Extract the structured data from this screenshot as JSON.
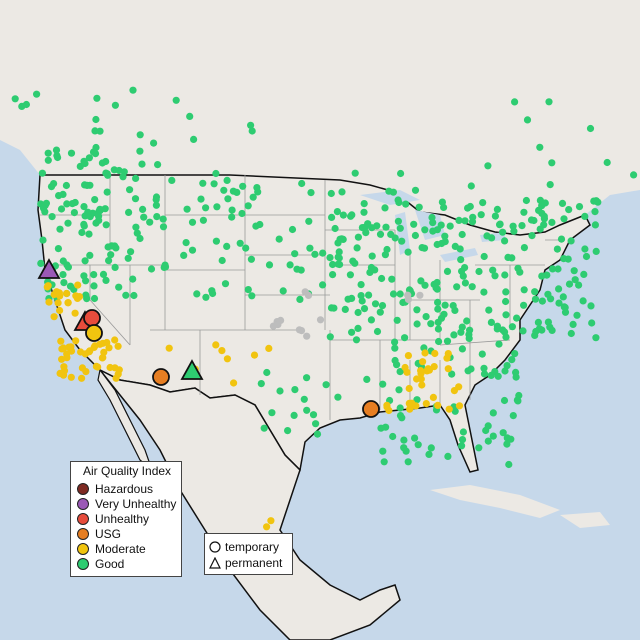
{
  "legend": {
    "title": "Air Quality Index",
    "categories": [
      {
        "label": "Hazardous",
        "color": "#7e2a22"
      },
      {
        "label": "Very Unhealthy",
        "color": "#9b59b6"
      },
      {
        "label": "Unhealthy",
        "color": "#e74c3c"
      },
      {
        "label": "USG",
        "color": "#e67e22"
      },
      {
        "label": "Moderate",
        "color": "#f1c40f"
      },
      {
        "label": "Good",
        "color": "#2ecc71"
      }
    ],
    "site_types": [
      {
        "label": "temporary",
        "shape": "circle"
      },
      {
        "label": "permanent",
        "shape": "triangle"
      }
    ]
  },
  "colors": {
    "water": "#c6d8ea",
    "land": "#ece9e4",
    "country_border": "#111111",
    "state_border": "#9a9a9a",
    "no_data": "#bdbdbd"
  }
}
